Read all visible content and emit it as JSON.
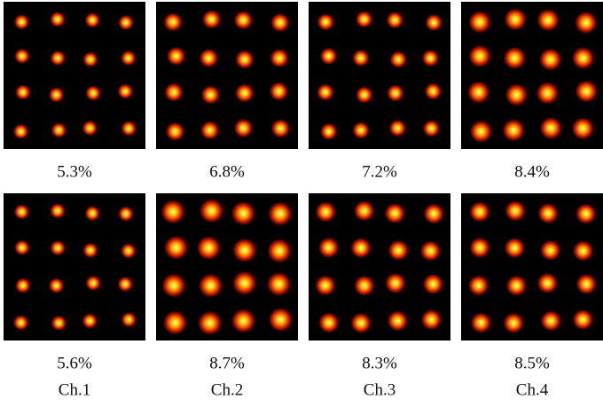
{
  "rows": [
    {
      "panels": [
        {
          "evm": "5.3%"
        },
        {
          "evm": "6.8%"
        },
        {
          "evm": "7.2%"
        },
        {
          "evm": "8.4%"
        }
      ]
    },
    {
      "panels": [
        {
          "evm": "5.6%"
        },
        {
          "evm": "8.7%"
        },
        {
          "evm": "8.3%"
        },
        {
          "evm": "8.5%"
        }
      ]
    }
  ],
  "channels": [
    "Ch.1",
    "Ch.2",
    "Ch.3",
    "Ch.4"
  ]
}
